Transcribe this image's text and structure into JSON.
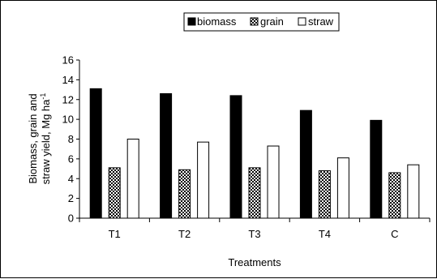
{
  "chart_data": {
    "type": "bar",
    "categories": [
      "T1",
      "T2",
      "T3",
      "T4",
      "C"
    ],
    "series": [
      {
        "name": "biomass",
        "values": [
          13.1,
          12.6,
          12.4,
          10.9,
          9.9
        ]
      },
      {
        "name": "grain",
        "values": [
          5.1,
          4.9,
          5.1,
          4.8,
          4.6
        ]
      },
      {
        "name": "straw",
        "values": [
          8.0,
          7.7,
          7.3,
          6.1,
          5.4
        ]
      }
    ],
    "ylim": [
      0,
      16
    ],
    "yticks": [
      0,
      2,
      4,
      6,
      8,
      10,
      12,
      14,
      16
    ],
    "ylabel_line1": "Biomass, grain and",
    "ylabel_line2": "straw yield, Mg ha",
    "ylabel_sup": "-1",
    "xlabel": "Treatments",
    "legend_position": "top-center",
    "grid": false
  }
}
